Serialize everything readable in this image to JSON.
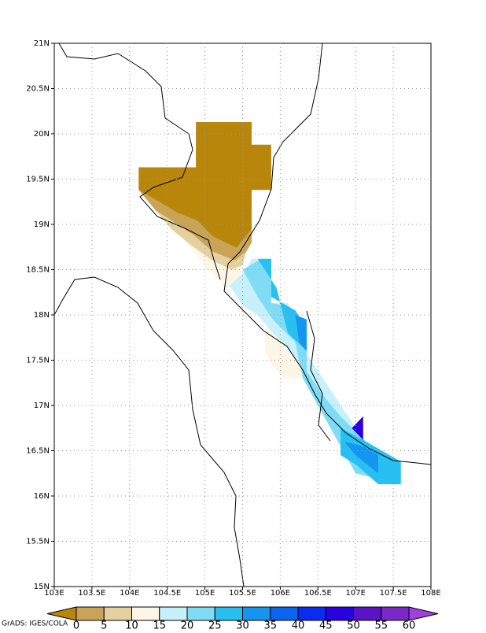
{
  "chart_data": {
    "type": "map",
    "xlim": [
      103,
      108
    ],
    "ylim": [
      15,
      21
    ],
    "xticks": [
      {
        "value": 103,
        "label": "103E"
      },
      {
        "value": 103.5,
        "label": "103.5E"
      },
      {
        "value": 104,
        "label": "104E"
      },
      {
        "value": 104.5,
        "label": "104.5E"
      },
      {
        "value": 105,
        "label": "105E"
      },
      {
        "value": 105.5,
        "label": "105.5E"
      },
      {
        "value": 106,
        "label": "106E"
      },
      {
        "value": 106.5,
        "label": "106.5E"
      },
      {
        "value": 107,
        "label": "107E"
      },
      {
        "value": 107.5,
        "label": "107.5E"
      },
      {
        "value": 108,
        "label": "108E"
      }
    ],
    "yticks": [
      {
        "value": 15,
        "label": "15N"
      },
      {
        "value": 15.5,
        "label": "15.5N"
      },
      {
        "value": 16,
        "label": "16N"
      },
      {
        "value": 16.5,
        "label": "16.5N"
      },
      {
        "value": 17,
        "label": "17N"
      },
      {
        "value": 17.5,
        "label": "17.5N"
      },
      {
        "value": 18,
        "label": "18N"
      },
      {
        "value": 18.5,
        "label": "18.5N"
      },
      {
        "value": 19,
        "label": "19N"
      },
      {
        "value": 19.5,
        "label": "19.5N"
      },
      {
        "value": 20,
        "label": "20N"
      },
      {
        "value": 20.5,
        "label": "20.5N"
      },
      {
        "value": 21,
        "label": "21N"
      }
    ],
    "grid": true,
    "levels": [
      0,
      5,
      10,
      15,
      20,
      25,
      30,
      35,
      40,
      45,
      50,
      55,
      60
    ],
    "colorbar_colors": [
      "#b8860b",
      "#c9a356",
      "#e5d09f",
      "#fdf5e6",
      "#c6f1fb",
      "#80dcf5",
      "#28c0f2",
      "#1496f0",
      "#0a64f0",
      "#0a2cf0",
      "#2a00e0",
      "#5a14c8",
      "#7a28c8",
      "#a040e0"
    ],
    "regions": [
      {
        "color": "#c9a356",
        "lon": [
          104.12,
          104.37,
          104.63,
          104.9,
          105.1,
          105.42,
          105.62,
          105.62,
          105.55,
          105.4,
          105.1,
          104.85,
          104.6,
          104.35,
          104.2
        ],
        "lat": [
          19.38,
          19.26,
          19.13,
          19.04,
          18.87,
          18.74,
          18.95,
          18.8,
          18.7,
          18.6,
          18.7,
          18.88,
          19.02,
          19.15,
          19.3
        ]
      },
      {
        "color": "#e5d09f",
        "lon": [
          104.35,
          104.6,
          104.85,
          105.1,
          105.4,
          105.55,
          105.5,
          105.35,
          105.1,
          104.8,
          104.55
        ],
        "lat": [
          19.15,
          19.02,
          18.88,
          18.7,
          18.6,
          18.7,
          18.55,
          18.5,
          18.6,
          18.78,
          18.95
        ]
      },
      {
        "color": "#fdf5e6",
        "lon": [
          104.55,
          104.8,
          105.1,
          105.35,
          105.5,
          105.45,
          105.3,
          105.1,
          104.7
        ],
        "lat": [
          18.95,
          18.78,
          18.6,
          18.5,
          18.55,
          18.35,
          18.3,
          18.45,
          18.85
        ]
      },
      {
        "color": "#fdf5e6",
        "lon": [
          105.8,
          106.05,
          106.05,
          106.3,
          106.3,
          106.05,
          105.85,
          105.8
        ],
        "lat": [
          17.85,
          17.85,
          17.62,
          17.62,
          17.3,
          17.3,
          17.5,
          17.6
        ]
      },
      {
        "color": "#c6f1fb",
        "lon": [
          105.3,
          105.55,
          105.62,
          105.88,
          105.88,
          106.1,
          106.3,
          106.5,
          106.7,
          106.9,
          107.1,
          107.3,
          107.6,
          107.6,
          107.3,
          107.0,
          106.8,
          106.6,
          106.4,
          106.3,
          106.1,
          105.85,
          105.7,
          105.5,
          105.35,
          105.2
        ],
        "lat": [
          18.3,
          18.5,
          18.62,
          18.62,
          18.13,
          18.13,
          17.63,
          17.38,
          17.13,
          16.88,
          16.63,
          16.5,
          16.38,
          16.13,
          16.13,
          16.38,
          16.6,
          16.9,
          17.15,
          17.4,
          17.62,
          17.85,
          18.0,
          18.1,
          18.3,
          18.35
        ]
      },
      {
        "color": "#b8860b",
        "lon": [
          104.88,
          105.62,
          105.62,
          105.88,
          105.88,
          105.62,
          105.62,
          105.42,
          105.1,
          104.9,
          104.63,
          104.37,
          104.12,
          104.12,
          104.88
        ],
        "lat": [
          20.13,
          20.13,
          19.88,
          19.88,
          19.38,
          19.38,
          18.95,
          18.74,
          18.87,
          19.04,
          19.13,
          19.26,
          19.38,
          19.63,
          19.63
        ]
      },
      {
        "color": "#80dcf5",
        "lon": [
          105.5,
          105.75,
          105.88,
          105.88,
          106.1,
          106.35,
          106.35,
          106.55,
          106.8,
          107.1,
          107.4,
          107.6,
          107.6,
          107.0,
          106.7,
          106.5,
          106.3,
          106.2,
          105.9,
          105.7
        ],
        "lat": [
          18.5,
          18.62,
          18.6,
          18.13,
          18.1,
          17.9,
          17.38,
          17.13,
          16.88,
          16.63,
          16.38,
          16.3,
          16.13,
          16.25,
          16.7,
          17.0,
          17.3,
          17.7,
          17.95,
          18.2
        ]
      },
      {
        "color": "#28c0f2",
        "lon": [
          105.7,
          105.88,
          105.88,
          106.2,
          106.35,
          106.35,
          106.1,
          105.95
        ],
        "lat": [
          18.62,
          18.62,
          18.2,
          18.05,
          17.85,
          17.6,
          17.8,
          18.3
        ]
      },
      {
        "color": "#28c0f2",
        "lon": [
          106.8,
          107.1,
          107.35,
          107.6,
          107.6,
          107.3,
          107.0,
          106.8
        ],
        "lat": [
          16.75,
          16.62,
          16.5,
          16.38,
          16.13,
          16.13,
          16.35,
          16.45
        ]
      },
      {
        "color": "#1496f0",
        "lon": [
          106.2,
          106.35,
          106.35,
          106.25
        ],
        "lat": [
          18.0,
          17.95,
          17.6,
          17.7
        ]
      },
      {
        "color": "#1496f0",
        "lon": [
          106.85,
          107.1,
          107.3,
          107.3,
          107.0
        ],
        "lat": [
          16.6,
          16.55,
          16.45,
          16.25,
          16.45
        ]
      },
      {
        "color": "#2a00e0",
        "lon": [
          106.95,
          107.1,
          107.1
        ],
        "lat": [
          16.75,
          16.88,
          16.62
        ]
      }
    ],
    "credit": "GrADS: IGES/COLA"
  }
}
